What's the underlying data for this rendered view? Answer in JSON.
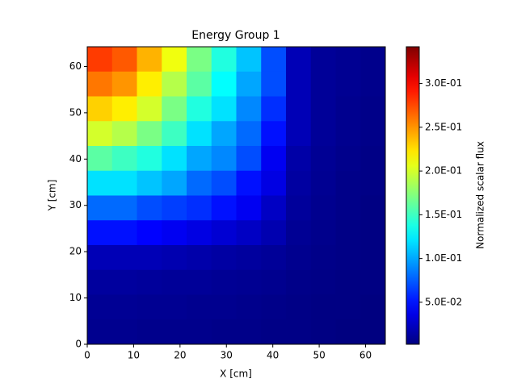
{
  "chart_data": {
    "type": "heatmap",
    "title": "Energy Group 1",
    "x_label": "X [cm]",
    "y_label": "Y [cm]",
    "colorbar_label": "Normalized scalar flux",
    "cmap": "jet",
    "xlim": [
      0,
      64.26
    ],
    "ylim": [
      0,
      64.26
    ],
    "xticks": [
      0,
      10,
      20,
      30,
      40,
      50,
      60
    ],
    "yticks": [
      0,
      10,
      20,
      30,
      40,
      50,
      60
    ],
    "clim": [
      0.002,
      0.342
    ],
    "cticks": [
      {
        "value": 0.05,
        "label": "5.0E-02"
      },
      {
        "value": 0.1,
        "label": "1.0E-01"
      },
      {
        "value": 0.15,
        "label": "1.5E-01"
      },
      {
        "value": 0.2,
        "label": "2.0E-01"
      },
      {
        "value": 0.25,
        "label": "2.5E-01"
      },
      {
        "value": 0.3,
        "label": "3.0E-01"
      }
    ],
    "values": [
      [
        0.28,
        0.27,
        0.24,
        0.21,
        0.17,
        0.14,
        0.11,
        0.07,
        0.02,
        0.01,
        0.008,
        0.006
      ],
      [
        0.26,
        0.25,
        0.22,
        0.19,
        0.16,
        0.13,
        0.1,
        0.07,
        0.02,
        0.01,
        0.008,
        0.006
      ],
      [
        0.23,
        0.22,
        0.2,
        0.17,
        0.14,
        0.12,
        0.09,
        0.06,
        0.02,
        0.01,
        0.007,
        0.005
      ],
      [
        0.2,
        0.19,
        0.17,
        0.15,
        0.12,
        0.1,
        0.08,
        0.05,
        0.02,
        0.01,
        0.007,
        0.005
      ],
      [
        0.16,
        0.15,
        0.14,
        0.12,
        0.1,
        0.09,
        0.07,
        0.04,
        0.015,
        0.009,
        0.006,
        0.004
      ],
      [
        0.12,
        0.12,
        0.11,
        0.1,
        0.08,
        0.07,
        0.05,
        0.035,
        0.013,
        0.008,
        0.005,
        0.004
      ],
      [
        0.08,
        0.08,
        0.07,
        0.065,
        0.06,
        0.05,
        0.04,
        0.025,
        0.011,
        0.007,
        0.005,
        0.003
      ],
      [
        0.05,
        0.05,
        0.045,
        0.04,
        0.035,
        0.03,
        0.025,
        0.018,
        0.009,
        0.006,
        0.004,
        0.003
      ],
      [
        0.02,
        0.02,
        0.02,
        0.018,
        0.016,
        0.014,
        0.012,
        0.01,
        0.007,
        0.005,
        0.004,
        0.003
      ],
      [
        0.012,
        0.012,
        0.011,
        0.01,
        0.01,
        0.009,
        0.008,
        0.007,
        0.005,
        0.004,
        0.003,
        0.003
      ],
      [
        0.009,
        0.009,
        0.008,
        0.008,
        0.007,
        0.007,
        0.006,
        0.005,
        0.004,
        0.003,
        0.003,
        0.002
      ],
      [
        0.007,
        0.007,
        0.006,
        0.006,
        0.006,
        0.005,
        0.005,
        0.004,
        0.004,
        0.003,
        0.002,
        0.002
      ]
    ]
  }
}
